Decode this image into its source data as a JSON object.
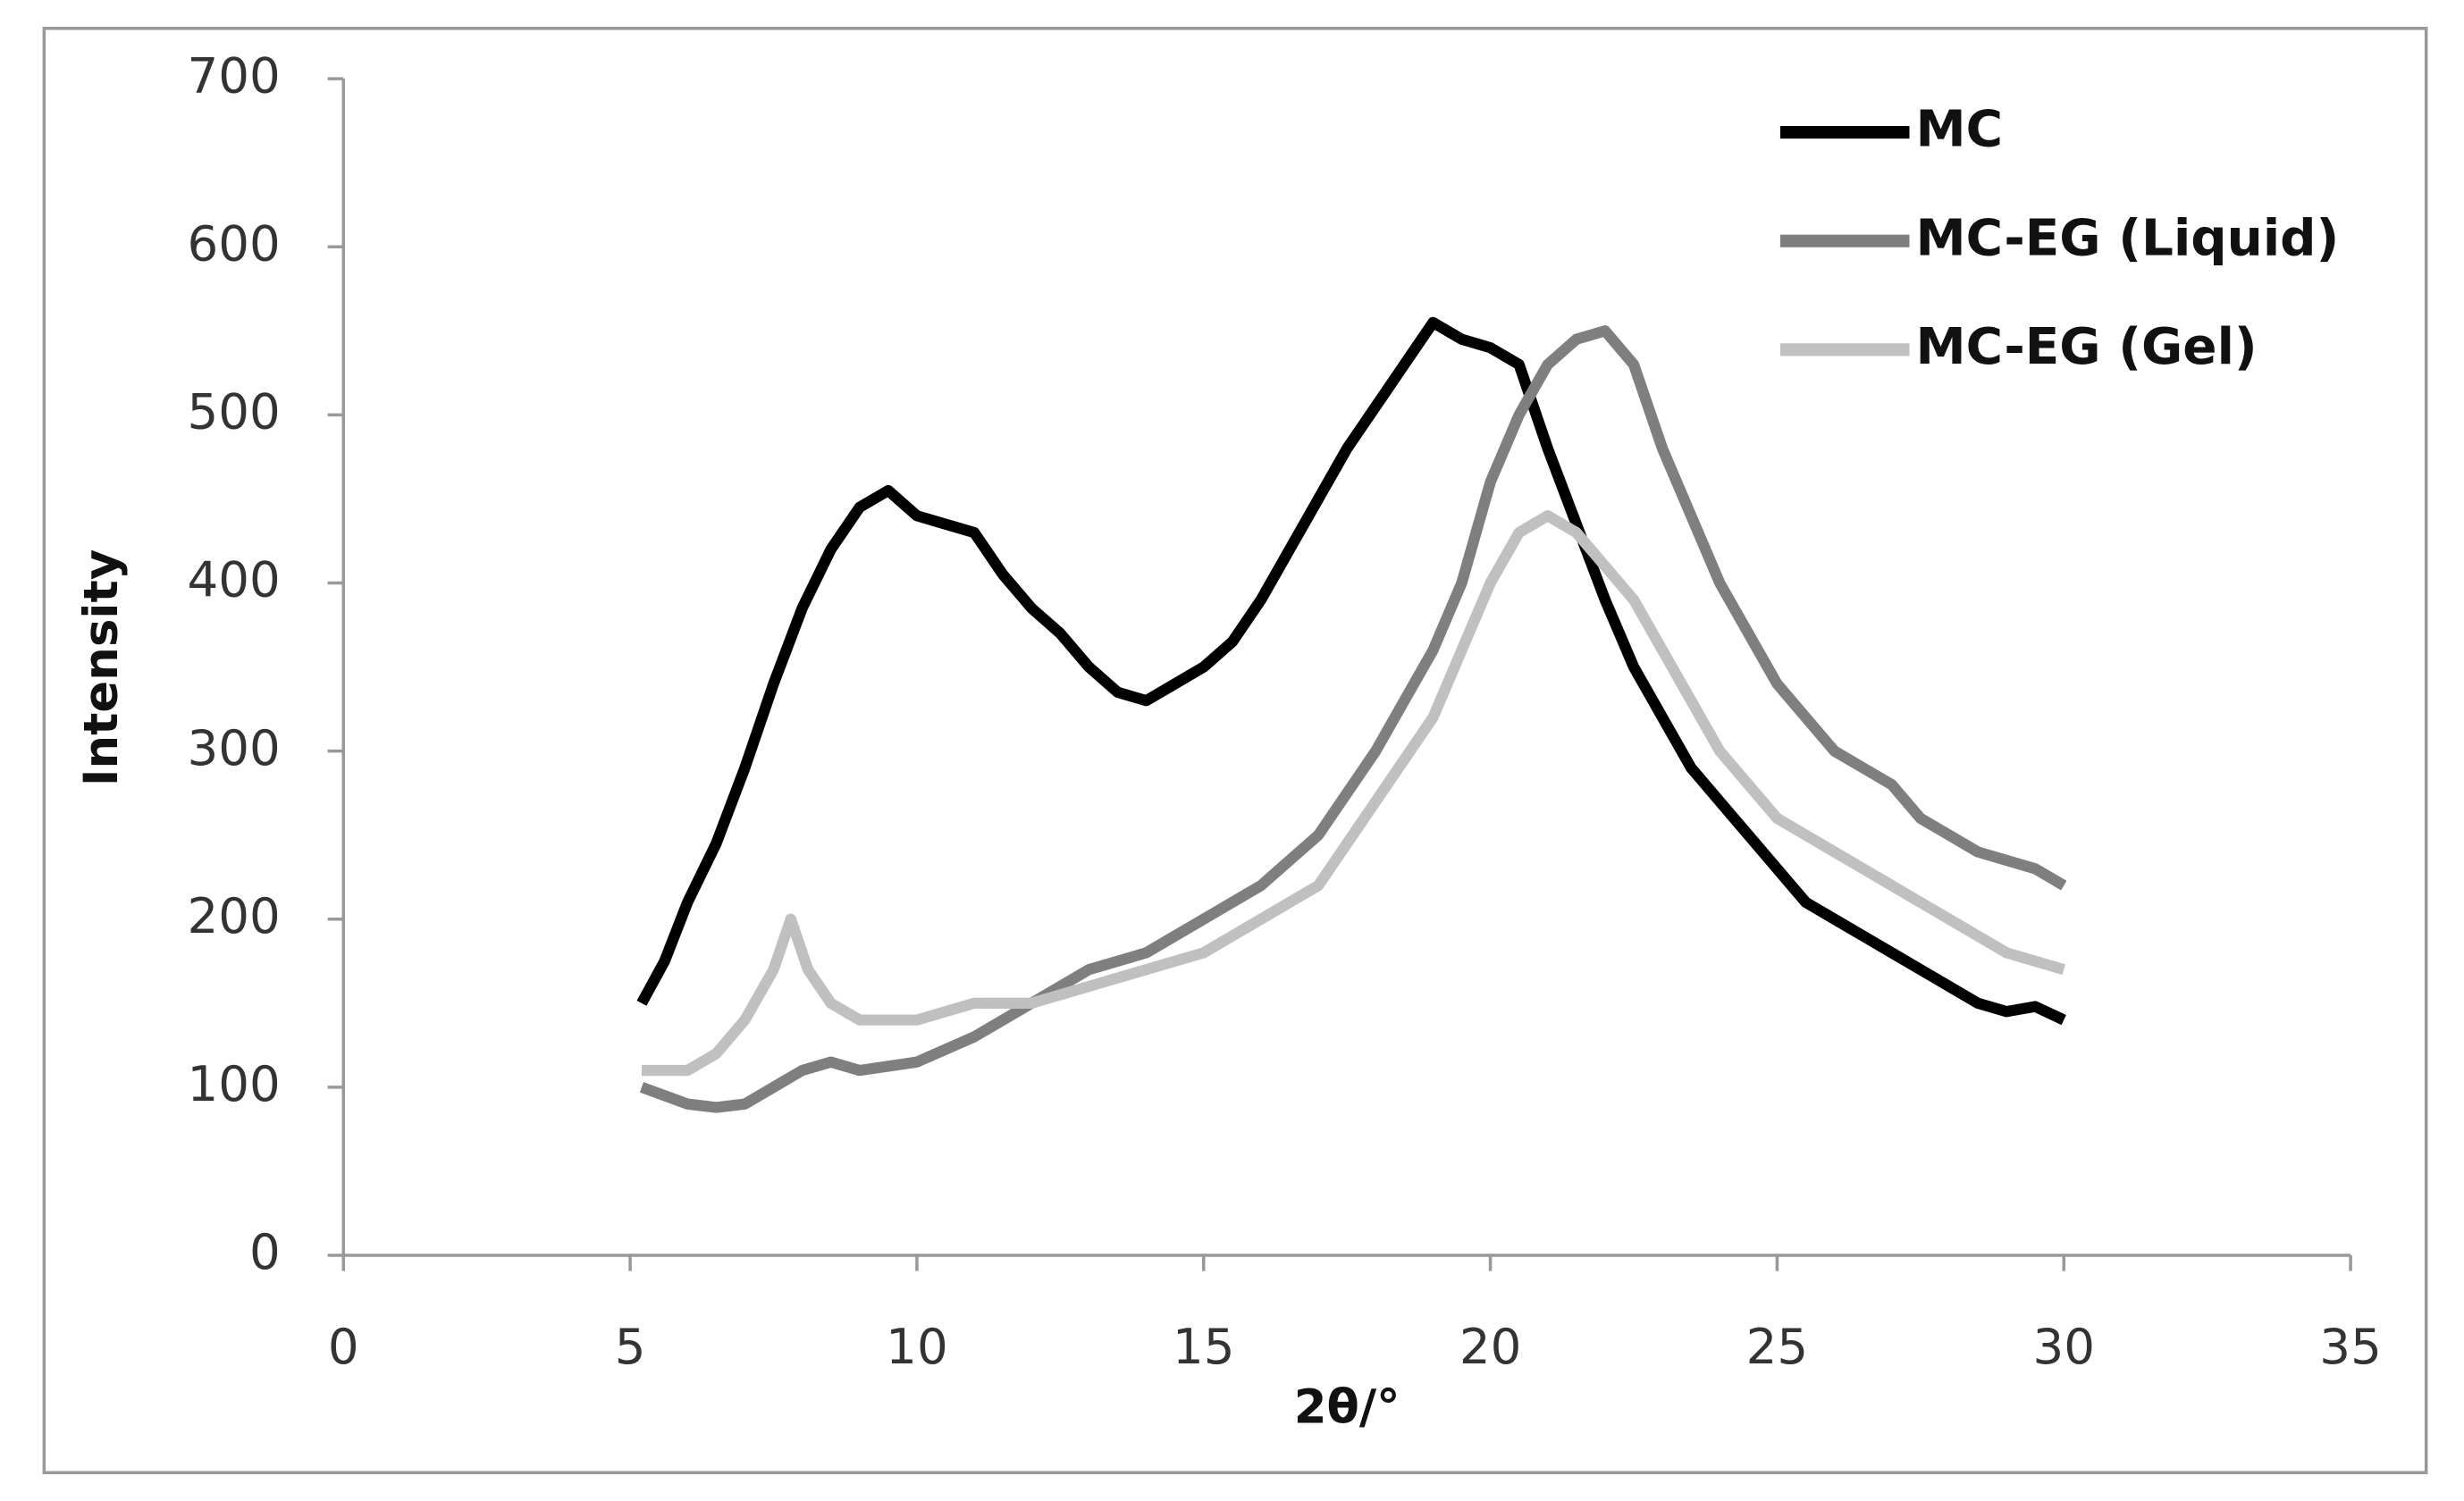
{
  "chart_data": {
    "type": "line",
    "x_label": "2θ/°",
    "y_label": "Intensity",
    "xlim": [
      0,
      35
    ],
    "xticks": [
      0,
      5,
      10,
      15,
      20,
      25,
      30,
      35
    ],
    "ylim": [
      0,
      700
    ],
    "yticks": [
      0,
      100,
      200,
      300,
      400,
      500,
      600,
      700
    ],
    "grid": false,
    "legend": "upper right",
    "series": [
      {
        "name": "MC",
        "color": "#000000",
        "x": [
          5.2,
          5.6,
          6,
          6.5,
          7,
          7.5,
          8,
          8.5,
          9,
          9.5,
          10,
          10.5,
          11,
          11.5,
          12,
          12.5,
          13,
          13.5,
          14,
          14.5,
          15,
          15.5,
          16,
          16.5,
          17,
          17.5,
          18,
          18.5,
          19,
          19.5,
          20,
          20.5,
          21,
          21.5,
          22,
          22.5,
          23,
          23.5,
          24,
          24.5,
          25,
          25.5,
          26,
          26.5,
          27,
          27.5,
          28,
          28.5,
          29,
          29.5,
          30
        ],
        "values": [
          150,
          175,
          210,
          245,
          290,
          340,
          385,
          420,
          445,
          455,
          440,
          435,
          430,
          405,
          385,
          370,
          350,
          335,
          330,
          340,
          350,
          365,
          390,
          420,
          450,
          480,
          505,
          530,
          555,
          545,
          540,
          530,
          480,
          435,
          390,
          350,
          320,
          290,
          270,
          250,
          230,
          210,
          200,
          190,
          180,
          170,
          160,
          150,
          145,
          148,
          140
        ]
      },
      {
        "name": "MC-EG (Liquid)",
        "color": "#7f7f7f",
        "x": [
          5.2,
          6,
          6.5,
          7,
          7.5,
          8,
          8.5,
          9,
          10,
          11,
          12,
          13,
          14,
          15,
          16,
          17,
          18,
          18.5,
          19,
          19.5,
          20,
          20.5,
          21,
          21.5,
          22,
          22.5,
          23,
          23.5,
          24,
          24.5,
          25,
          25.5,
          26,
          26.5,
          27,
          27.5,
          28,
          28.5,
          29,
          29.5,
          30
        ],
        "values": [
          100,
          90,
          88,
          90,
          100,
          110,
          115,
          110,
          115,
          130,
          150,
          170,
          180,
          200,
          220,
          250,
          300,
          330,
          360,
          400,
          460,
          500,
          530,
          545,
          550,
          530,
          480,
          440,
          400,
          370,
          340,
          320,
          300,
          290,
          280,
          260,
          250,
          240,
          235,
          230,
          220
        ]
      },
      {
        "name": "MC-EG (Gel)",
        "color": "#c0c0c0",
        "x": [
          5.2,
          6,
          6.5,
          7,
          7.5,
          7.8,
          8.1,
          8.5,
          9,
          10,
          11,
          12,
          13,
          14,
          15,
          16,
          17,
          18,
          19,
          19.5,
          20,
          20.5,
          21,
          21.5,
          22,
          22.5,
          23,
          23.5,
          24,
          24.5,
          25,
          25.5,
          26,
          26.5,
          27,
          27.5,
          28,
          28.5,
          29,
          29.5,
          30
        ],
        "values": [
          110,
          110,
          120,
          140,
          170,
          200,
          170,
          150,
          140,
          140,
          150,
          150,
          160,
          170,
          180,
          200,
          220,
          270,
          320,
          360,
          400,
          430,
          440,
          430,
          410,
          390,
          360,
          330,
          300,
          280,
          260,
          250,
          240,
          230,
          220,
          210,
          200,
          190,
          180,
          175,
          170
        ]
      }
    ]
  }
}
